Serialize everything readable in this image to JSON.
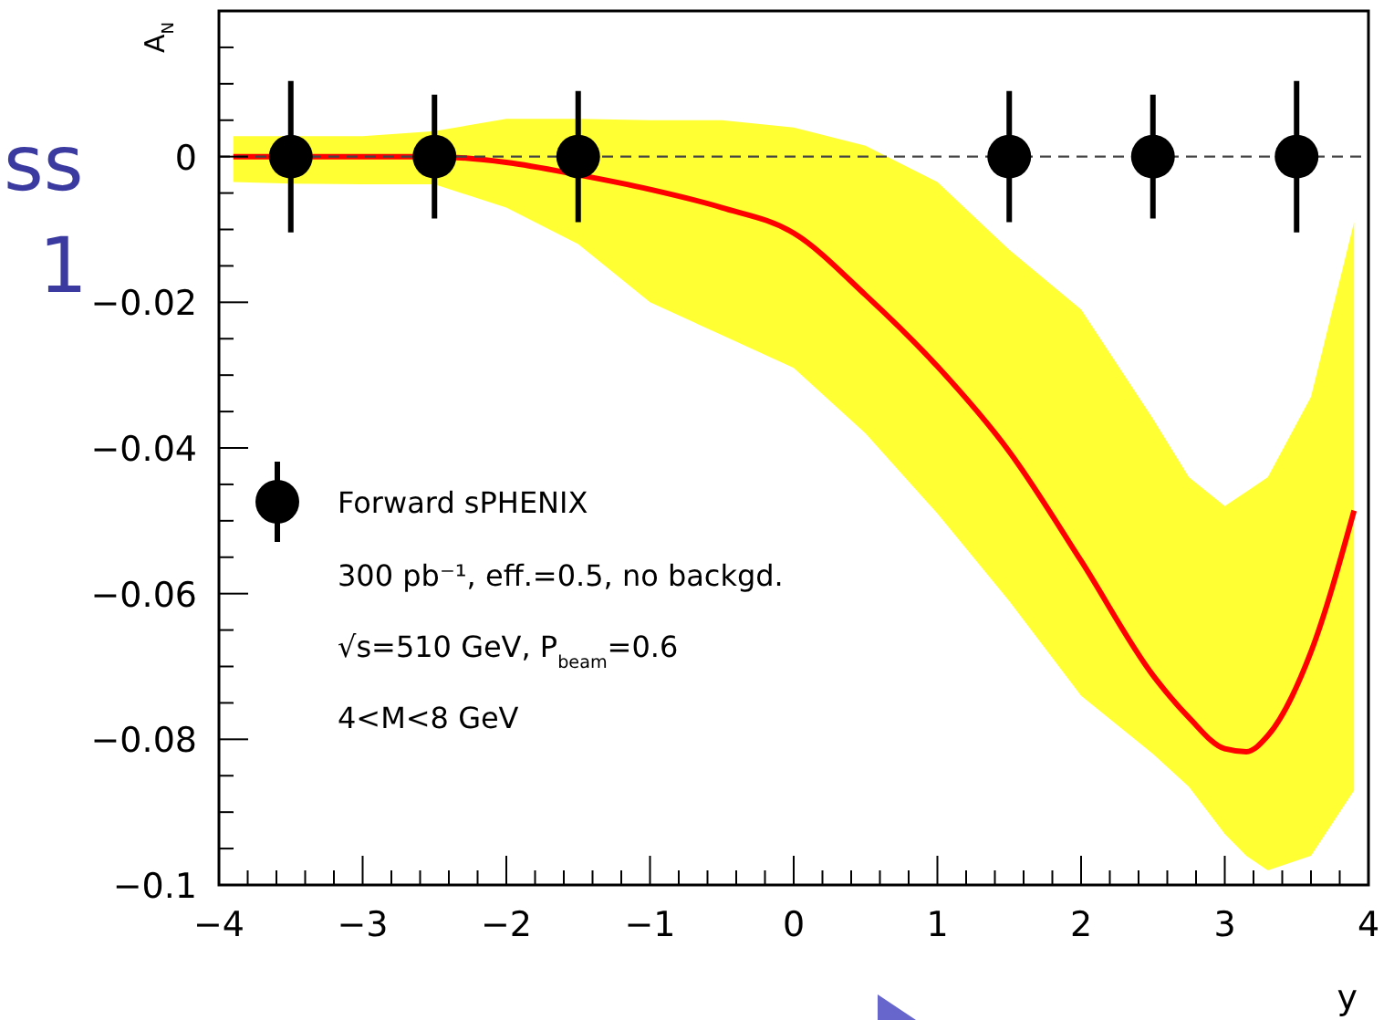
{
  "chart_data": {
    "type": "scatter",
    "xlabel": "y",
    "ylabel": "A$_{N}$",
    "legend": "left",
    "grid": false,
    "xlim": [
      -4,
      4
    ],
    "ylim": [
      -0.1,
      0.02
    ],
    "xticks": [
      -4,
      {
        "value": -3.8,
        "label": null
      },
      {
        "value": -3.6,
        "label": null
      },
      {
        "value": -3.4,
        "label": null
      },
      {
        "value": -3.2,
        "label": null
      },
      -3,
      {
        "value": -2.8,
        "label": null
      },
      {
        "value": -2.6,
        "label": null
      },
      {
        "value": -2.4,
        "label": null
      },
      {
        "value": -2.2,
        "label": null
      },
      -2,
      {
        "value": -1.8,
        "label": null
      },
      {
        "value": -1.6,
        "label": null
      },
      {
        "value": -1.4,
        "label": null
      },
      {
        "value": -1.2,
        "label": null
      },
      -1,
      {
        "value": -0.8,
        "label": null
      },
      {
        "value": -0.6,
        "label": null
      },
      {
        "value": -0.4,
        "label": null
      },
      {
        "value": -0.2,
        "label": null
      },
      0,
      {
        "value": 0.2,
        "label": null
      },
      {
        "value": 0.4,
        "label": null
      },
      {
        "value": 0.6,
        "label": null
      },
      {
        "value": 0.8,
        "label": null
      },
      1,
      {
        "value": 1.2,
        "label": null
      },
      {
        "value": 1.4,
        "label": null
      },
      {
        "value": 1.6,
        "label": null
      },
      {
        "value": 1.8,
        "label": null
      },
      2,
      {
        "value": 2.2,
        "label": null
      },
      {
        "value": 2.4,
        "label": null
      },
      {
        "value": 2.6,
        "label": null
      },
      {
        "value": 2.8,
        "label": null
      },
      3,
      {
        "value": 3.2,
        "label": null
      },
      {
        "value": 3.4,
        "label": null
      },
      {
        "value": 3.6,
        "label": null
      },
      {
        "value": 3.8,
        "label": null
      },
      4
    ],
    "yticks": [
      -0.1,
      {
        "value": -0.095,
        "label": null
      },
      {
        "value": -0.09,
        "label": null
      },
      {
        "value": -0.085,
        "label": null
      },
      -0.08,
      {
        "value": -0.075,
        "label": null
      },
      {
        "value": -0.07,
        "label": null
      },
      {
        "value": -0.065,
        "label": null
      },
      -0.06,
      {
        "value": -0.055,
        "label": null
      },
      {
        "value": -0.05,
        "label": null
      },
      {
        "value": -0.045,
        "label": null
      },
      -0.04,
      {
        "value": -0.035,
        "label": null
      },
      {
        "value": -0.03,
        "label": null
      },
      {
        "value": -0.025,
        "label": null
      },
      -0.02,
      {
        "value": -0.015,
        "label": null
      },
      {
        "value": -0.01,
        "label": null
      },
      {
        "value": -0.005,
        "label": null
      },
      0,
      {
        "value": 0.005,
        "label": null
      },
      {
        "value": 0.01,
        "label": null
      },
      {
        "value": 0.015,
        "label": null
      }
    ],
    "ref_lines": [
      {
        "axis": "y",
        "value": 0,
        "line_style": "dashed",
        "color": "#444444"
      }
    ],
    "series": [
      {
        "type": "line",
        "color": "#ff0000",
        "line_style": "solid",
        "x": [
          -3.9,
          -3.5,
          -3,
          -2.5,
          -2,
          -1.5,
          -1,
          -0.5,
          0,
          0.5,
          1,
          1.5,
          2,
          2.5,
          2.75,
          3,
          3.15,
          3.3,
          3.6,
          3.9
        ],
        "values": [
          0,
          0,
          0,
          0,
          -0.0008,
          -0.0025,
          -0.0045,
          -0.007,
          -0.0105,
          -0.019,
          -0.0288,
          -0.0405,
          -0.0555,
          -0.0712,
          -0.077,
          -0.0813,
          -0.0817,
          -0.0795,
          -0.068,
          -0.0486
        ],
        "upper": [
          0.0028,
          0.0028,
          0.0028,
          0.0035,
          0.0052,
          0.0052,
          0.005,
          0.005,
          0.004,
          0.0015,
          -0.0035,
          -0.0128,
          -0.021,
          -0.036,
          -0.044,
          -0.048,
          -0.046,
          -0.044,
          -0.033,
          -0.009
        ],
        "lower": [
          -0.0035,
          -0.0037,
          -0.0038,
          -0.0038,
          -0.007,
          -0.012,
          -0.02,
          -0.0245,
          -0.029,
          -0.038,
          -0.049,
          -0.061,
          -0.074,
          -0.082,
          -0.0865,
          -0.093,
          -0.096,
          -0.098,
          -0.096,
          -0.087
        ]
      },
      {
        "name": "Forward sPHENIX",
        "color": "#000000",
        "marker": "circle",
        "x": [
          -3.5,
          -2.5,
          -1.5,
          1.5,
          2.5,
          3.5
        ],
        "values": [
          0,
          0,
          0,
          0,
          0,
          0
        ],
        "errors": [
          0.0104,
          0.0085,
          0.009,
          0.009,
          0.0085,
          0.0104
        ]
      }
    ],
    "annotations": [
      "300 pb⁻¹, eff.=0.5, no backgd.",
      "√s=510 GeV, P$_{beam}$=0.6",
      "4<M<8 GeV",
      "ss",
      "1"
    ]
  }
}
